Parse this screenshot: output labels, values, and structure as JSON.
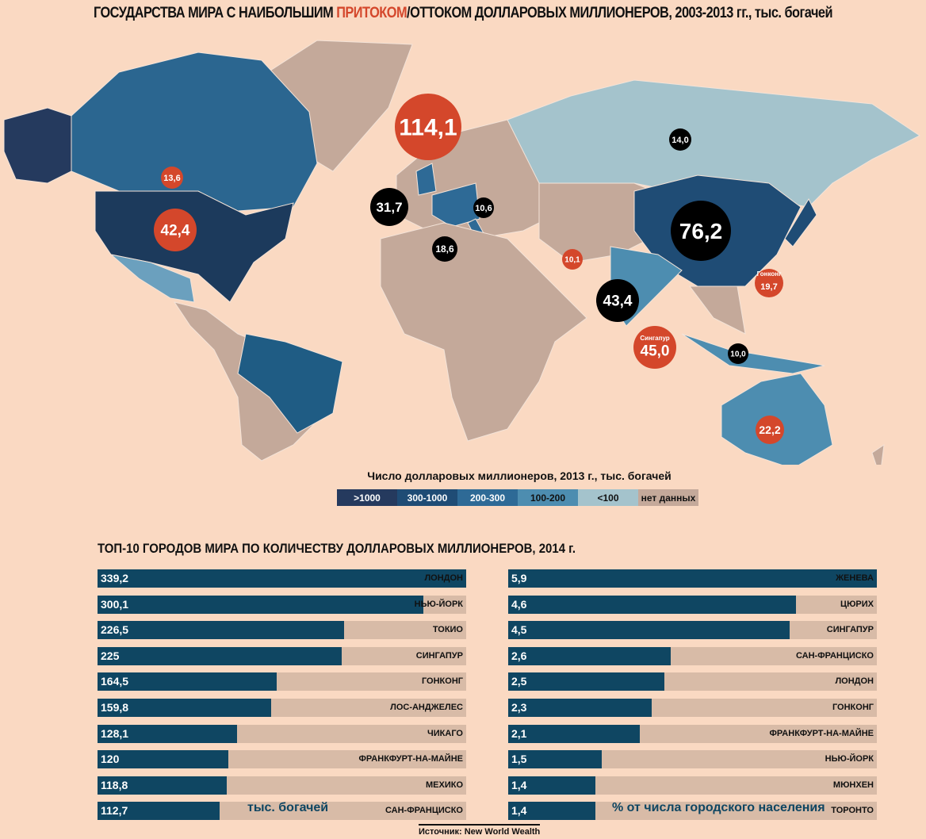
{
  "title": {
    "part1": "ГОСУДАРСТВА МИРА С НАИБОЛЬШИМ ",
    "highlight": "ПРИТОКОМ",
    "part2": "/ОТТОКОМ ДОЛЛАРОВЫХ МИЛЛИОНЕРОВ, 2003-2013 гг., тыс. богачей"
  },
  "colors": {
    "inflow": "#d4472b",
    "outflow": "#000000",
    "bar": "#0f4662",
    "track": "#d8bba7",
    "background": "#fad9c2"
  },
  "map_bubbles": [
    {
      "label": "",
      "value": "114,1",
      "type": "inflow",
      "country": "UK"
    },
    {
      "label": "",
      "value": "42,4",
      "type": "inflow",
      "country": "USA"
    },
    {
      "label": "",
      "value": "13,6",
      "type": "inflow",
      "country": "Canada"
    },
    {
      "label": "",
      "value": "31,7",
      "type": "outflow",
      "country": "France"
    },
    {
      "label": "",
      "value": "10,6",
      "type": "outflow",
      "country": "Germany"
    },
    {
      "label": "",
      "value": "18,6",
      "type": "outflow",
      "country": "Italy"
    },
    {
      "label": "",
      "value": "14,0",
      "type": "outflow",
      "country": "Russia"
    },
    {
      "label": "",
      "value": "76,2",
      "type": "outflow",
      "country": "China"
    },
    {
      "label": "",
      "value": "43,4",
      "type": "outflow",
      "country": "India"
    },
    {
      "label": "",
      "value": "10,1",
      "type": "inflow",
      "country": "UAE"
    },
    {
      "label": "Гонконг",
      "value": "19,7",
      "type": "inflow",
      "country": "Hong Kong"
    },
    {
      "label": "Сингапур",
      "value": "45,0",
      "type": "inflow",
      "country": "Singapore"
    },
    {
      "label": "",
      "value": "10,0",
      "type": "outflow",
      "country": "Indonesia"
    },
    {
      "label": "",
      "value": "22,2",
      "type": "inflow",
      "country": "Australia"
    }
  ],
  "legend": {
    "title": "Число долларовых миллионеров, 2013 г., тыс. богачей",
    "items": [
      {
        "label": ">1000",
        "color": "#253a5e",
        "text": "#fff"
      },
      {
        "label": "300-1000",
        "color": "#1f4c75",
        "text": "#fff"
      },
      {
        "label": "200-300",
        "color": "#2e6a96",
        "text": "#fff"
      },
      {
        "label": "100-200",
        "color": "#4d8db0",
        "text": "#111"
      },
      {
        "label": "<100",
        "color": "#a4c3cc",
        "text": "#111"
      },
      {
        "label": "нет данных",
        "color": "#c4a99a",
        "text": "#111"
      }
    ]
  },
  "chart_data": [
    {
      "type": "bar",
      "title": "ТОП-10 ГОРОДОВ МИРА ПО КОЛИЧЕСТВУ ДОЛЛАРОВЫХ МИЛЛИОНЕРОВ, 2014 г.",
      "unit": "тыс. богачей",
      "categories": [
        "ЛОНДОН",
        "НЬЮ-ЙОРК",
        "ТОКИО",
        "СИНГАПУР",
        "ГОНКОНГ",
        "ЛОС-АНДЖЕЛЕС",
        "ЧИКАГО",
        "ФРАНКФУРТ-НА-МАЙНЕ",
        "МЕХИКО",
        "САН-ФРАНЦИСКО"
      ],
      "values": [
        339.2,
        300.1,
        226.5,
        225,
        164.5,
        159.8,
        128.1,
        120,
        118.8,
        112.7
      ],
      "labels": [
        "339,2",
        "300,1",
        "226,5",
        "225",
        "164,5",
        "159,8",
        "128,1",
        "120",
        "118,8",
        "112,7"
      ],
      "xlim": [
        0,
        339.2
      ]
    },
    {
      "type": "bar",
      "unit": "% от числа городского населения",
      "categories": [
        "ЖЕНЕВА",
        "ЦЮРИХ",
        "СИНГАПУР",
        "САН-ФРАНЦИСКО",
        "ЛОНДОН",
        "ГОНКОНГ",
        "ФРАНКФУРТ-НА-МАЙНЕ",
        "НЬЮ-ЙОРК",
        "МЮНХЕН",
        "ТОРОНТО"
      ],
      "values": [
        5.9,
        4.6,
        4.5,
        2.6,
        2.5,
        2.3,
        2.1,
        1.5,
        1.4,
        1.4
      ],
      "labels": [
        "5,9",
        "4,6",
        "4,5",
        "2,6",
        "2,5",
        "2,3",
        "2,1",
        "1,5",
        "1,4",
        "1,4"
      ],
      "xlim": [
        0,
        5.9
      ]
    }
  ],
  "source": "Источник: New World Wealth"
}
